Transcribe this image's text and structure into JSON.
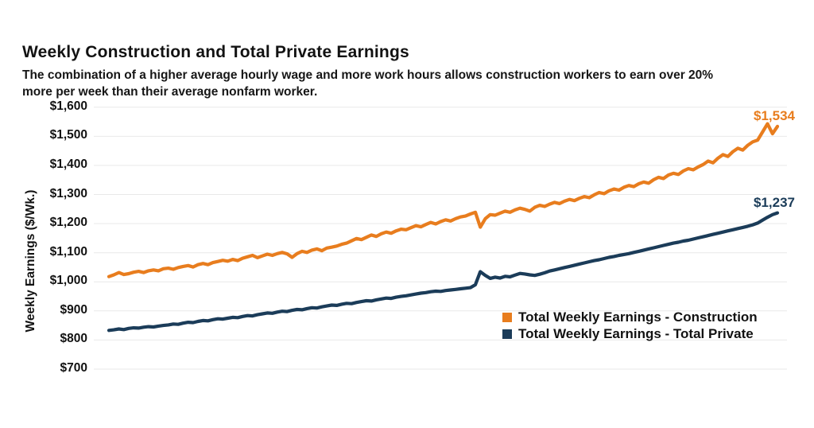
{
  "page": {
    "title": "Weekly Construction and Total Private Earnings",
    "subtitle_lines": [
      "The combination of a higher average hourly wage and more work hours allows construction workers to earn over 20%",
      "more per week than their average nonfarm worker."
    ]
  },
  "chart_data": {
    "type": "line",
    "title": "Weekly Construction and Total Private Earnings",
    "subtitle": "The combination of a higher average hourly wage and more work hours allows construction workers to earn over 20% more per week than their average nonfarm worker.",
    "ylabel": "Weekly Earnings ($/Wk.)",
    "ylim": [
      700,
      1600
    ],
    "grid": "horizontal",
    "legend_position": "inside-lower-right",
    "x_axis": {
      "tick_labels_visible": false,
      "n_points": 136
    },
    "yticks": [
      {
        "value": 700,
        "label": "$700"
      },
      {
        "value": 800,
        "label": "$800"
      },
      {
        "value": 900,
        "label": "$900"
      },
      {
        "value": 1000,
        "label": "$1,000"
      },
      {
        "value": 1100,
        "label": "$1,100"
      },
      {
        "value": 1200,
        "label": "$1,200"
      },
      {
        "value": 1300,
        "label": "$1,300"
      },
      {
        "value": 1400,
        "label": "$1,400"
      },
      {
        "value": 1500,
        "label": "$1,500"
      },
      {
        "value": 1600,
        "label": "$1,600"
      }
    ],
    "series": [
      {
        "name": "Total Weekly Earnings - Construction",
        "color": "#E87D1E",
        "end_label": "$1,534",
        "end_value": 1534,
        "values": [
          1018,
          1024,
          1032,
          1025,
          1028,
          1033,
          1036,
          1032,
          1038,
          1041,
          1038,
          1045,
          1047,
          1043,
          1049,
          1053,
          1056,
          1051,
          1059,
          1063,
          1059,
          1066,
          1070,
          1074,
          1071,
          1077,
          1073,
          1081,
          1086,
          1091,
          1083,
          1089,
          1095,
          1091,
          1097,
          1101,
          1096,
          1084,
          1097,
          1105,
          1101,
          1109,
          1113,
          1107,
          1116,
          1119,
          1123,
          1129,
          1133,
          1141,
          1149,
          1145,
          1153,
          1161,
          1156,
          1165,
          1171,
          1167,
          1175,
          1181,
          1179,
          1186,
          1193,
          1189,
          1197,
          1204,
          1199,
          1207,
          1213,
          1209,
          1217,
          1223,
          1226,
          1233,
          1239,
          1188,
          1217,
          1231,
          1229,
          1236,
          1243,
          1239,
          1247,
          1253,
          1249,
          1243,
          1256,
          1263,
          1259,
          1267,
          1273,
          1269,
          1277,
          1283,
          1279,
          1287,
          1293,
          1289,
          1299,
          1307,
          1303,
          1313,
          1319,
          1315,
          1325,
          1331,
          1327,
          1337,
          1343,
          1339,
          1351,
          1359,
          1355,
          1367,
          1373,
          1369,
          1381,
          1389,
          1385,
          1395,
          1403,
          1415,
          1409,
          1425,
          1437,
          1431,
          1447,
          1459,
          1453,
          1469,
          1481,
          1487,
          1515,
          1543,
          1509,
          1534
        ]
      },
      {
        "name": "Total Weekly Earnings - Total Private",
        "color": "#1B3C59",
        "end_label": "$1,237",
        "end_value": 1237,
        "values": [
          833,
          835,
          838,
          836,
          840,
          842,
          841,
          844,
          846,
          845,
          848,
          850,
          852,
          855,
          854,
          858,
          861,
          860,
          864,
          867,
          866,
          870,
          873,
          872,
          875,
          878,
          877,
          881,
          884,
          883,
          887,
          890,
          893,
          892,
          896,
          899,
          898,
          902,
          905,
          904,
          908,
          911,
          910,
          914,
          917,
          920,
          919,
          923,
          926,
          925,
          929,
          932,
          935,
          934,
          938,
          941,
          944,
          943,
          947,
          950,
          952,
          955,
          958,
          961,
          963,
          966,
          968,
          967,
          970,
          972,
          974,
          976,
          978,
          980,
          990,
          1035,
          1022,
          1012,
          1016,
          1013,
          1019,
          1017,
          1023,
          1029,
          1027,
          1024,
          1022,
          1026,
          1031,
          1037,
          1041,
          1045,
          1049,
          1053,
          1057,
          1061,
          1065,
          1069,
          1073,
          1076,
          1080,
          1084,
          1087,
          1091,
          1094,
          1097,
          1101,
          1105,
          1109,
          1113,
          1117,
          1121,
          1125,
          1129,
          1133,
          1136,
          1140,
          1143,
          1147,
          1151,
          1155,
          1159,
          1163,
          1167,
          1171,
          1175,
          1179,
          1183,
          1187,
          1191,
          1196,
          1202,
          1212,
          1222,
          1231,
          1237
        ]
      }
    ]
  }
}
